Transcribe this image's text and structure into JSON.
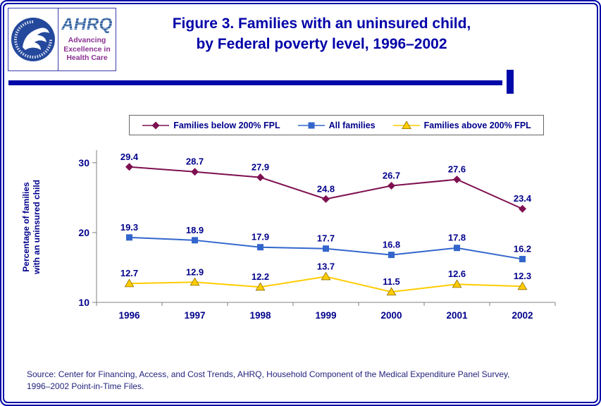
{
  "header": {
    "logo": {
      "ahrq_name": "AHRQ",
      "tagline_line1": "Advancing",
      "tagline_line2": "Excellence in",
      "tagline_line3": "Health Care"
    },
    "title_line1": "Figure 3. Families with an uninsured child,",
    "title_line2": "by Federal poverty level, 1996–2002"
  },
  "chart_data": {
    "type": "line",
    "title": "Figure 3. Families with an uninsured child, by Federal poverty level, 1996–2002",
    "x": [
      1996,
      1997,
      1998,
      1999,
      2000,
      2001,
      2002
    ],
    "series": [
      {
        "name": "Families below 200% FPL",
        "marker": "diamond",
        "color": "#7e1050",
        "values": [
          29.4,
          28.7,
          27.9,
          24.8,
          26.7,
          27.6,
          23.4
        ]
      },
      {
        "name": "All families",
        "marker": "square",
        "color": "#3366cc",
        "values": [
          19.3,
          18.9,
          17.9,
          17.7,
          16.8,
          17.8,
          16.2
        ]
      },
      {
        "name": "Families above 200% FPL",
        "marker": "triangle",
        "color": "#ffcc00",
        "values": [
          12.7,
          12.9,
          12.2,
          13.7,
          11.5,
          12.6,
          12.3
        ]
      }
    ],
    "xlabel": "",
    "ylabel": "Percentage of families with an uninsured child",
    "ylabel_lines": [
      "Percentage of families",
      "with an uninsured child"
    ],
    "ylim": [
      10,
      31.8
    ],
    "yticks": [
      10,
      20,
      30
    ],
    "grid": false,
    "legend_position": "top"
  },
  "footer": {
    "source_line1": "Source: Center for Financing, Access, and Cost Trends, AHRQ, Household Component of the Medical Expenditure Panel Survey,",
    "source_line2": "1996–2002 Point-in-Time Files."
  }
}
